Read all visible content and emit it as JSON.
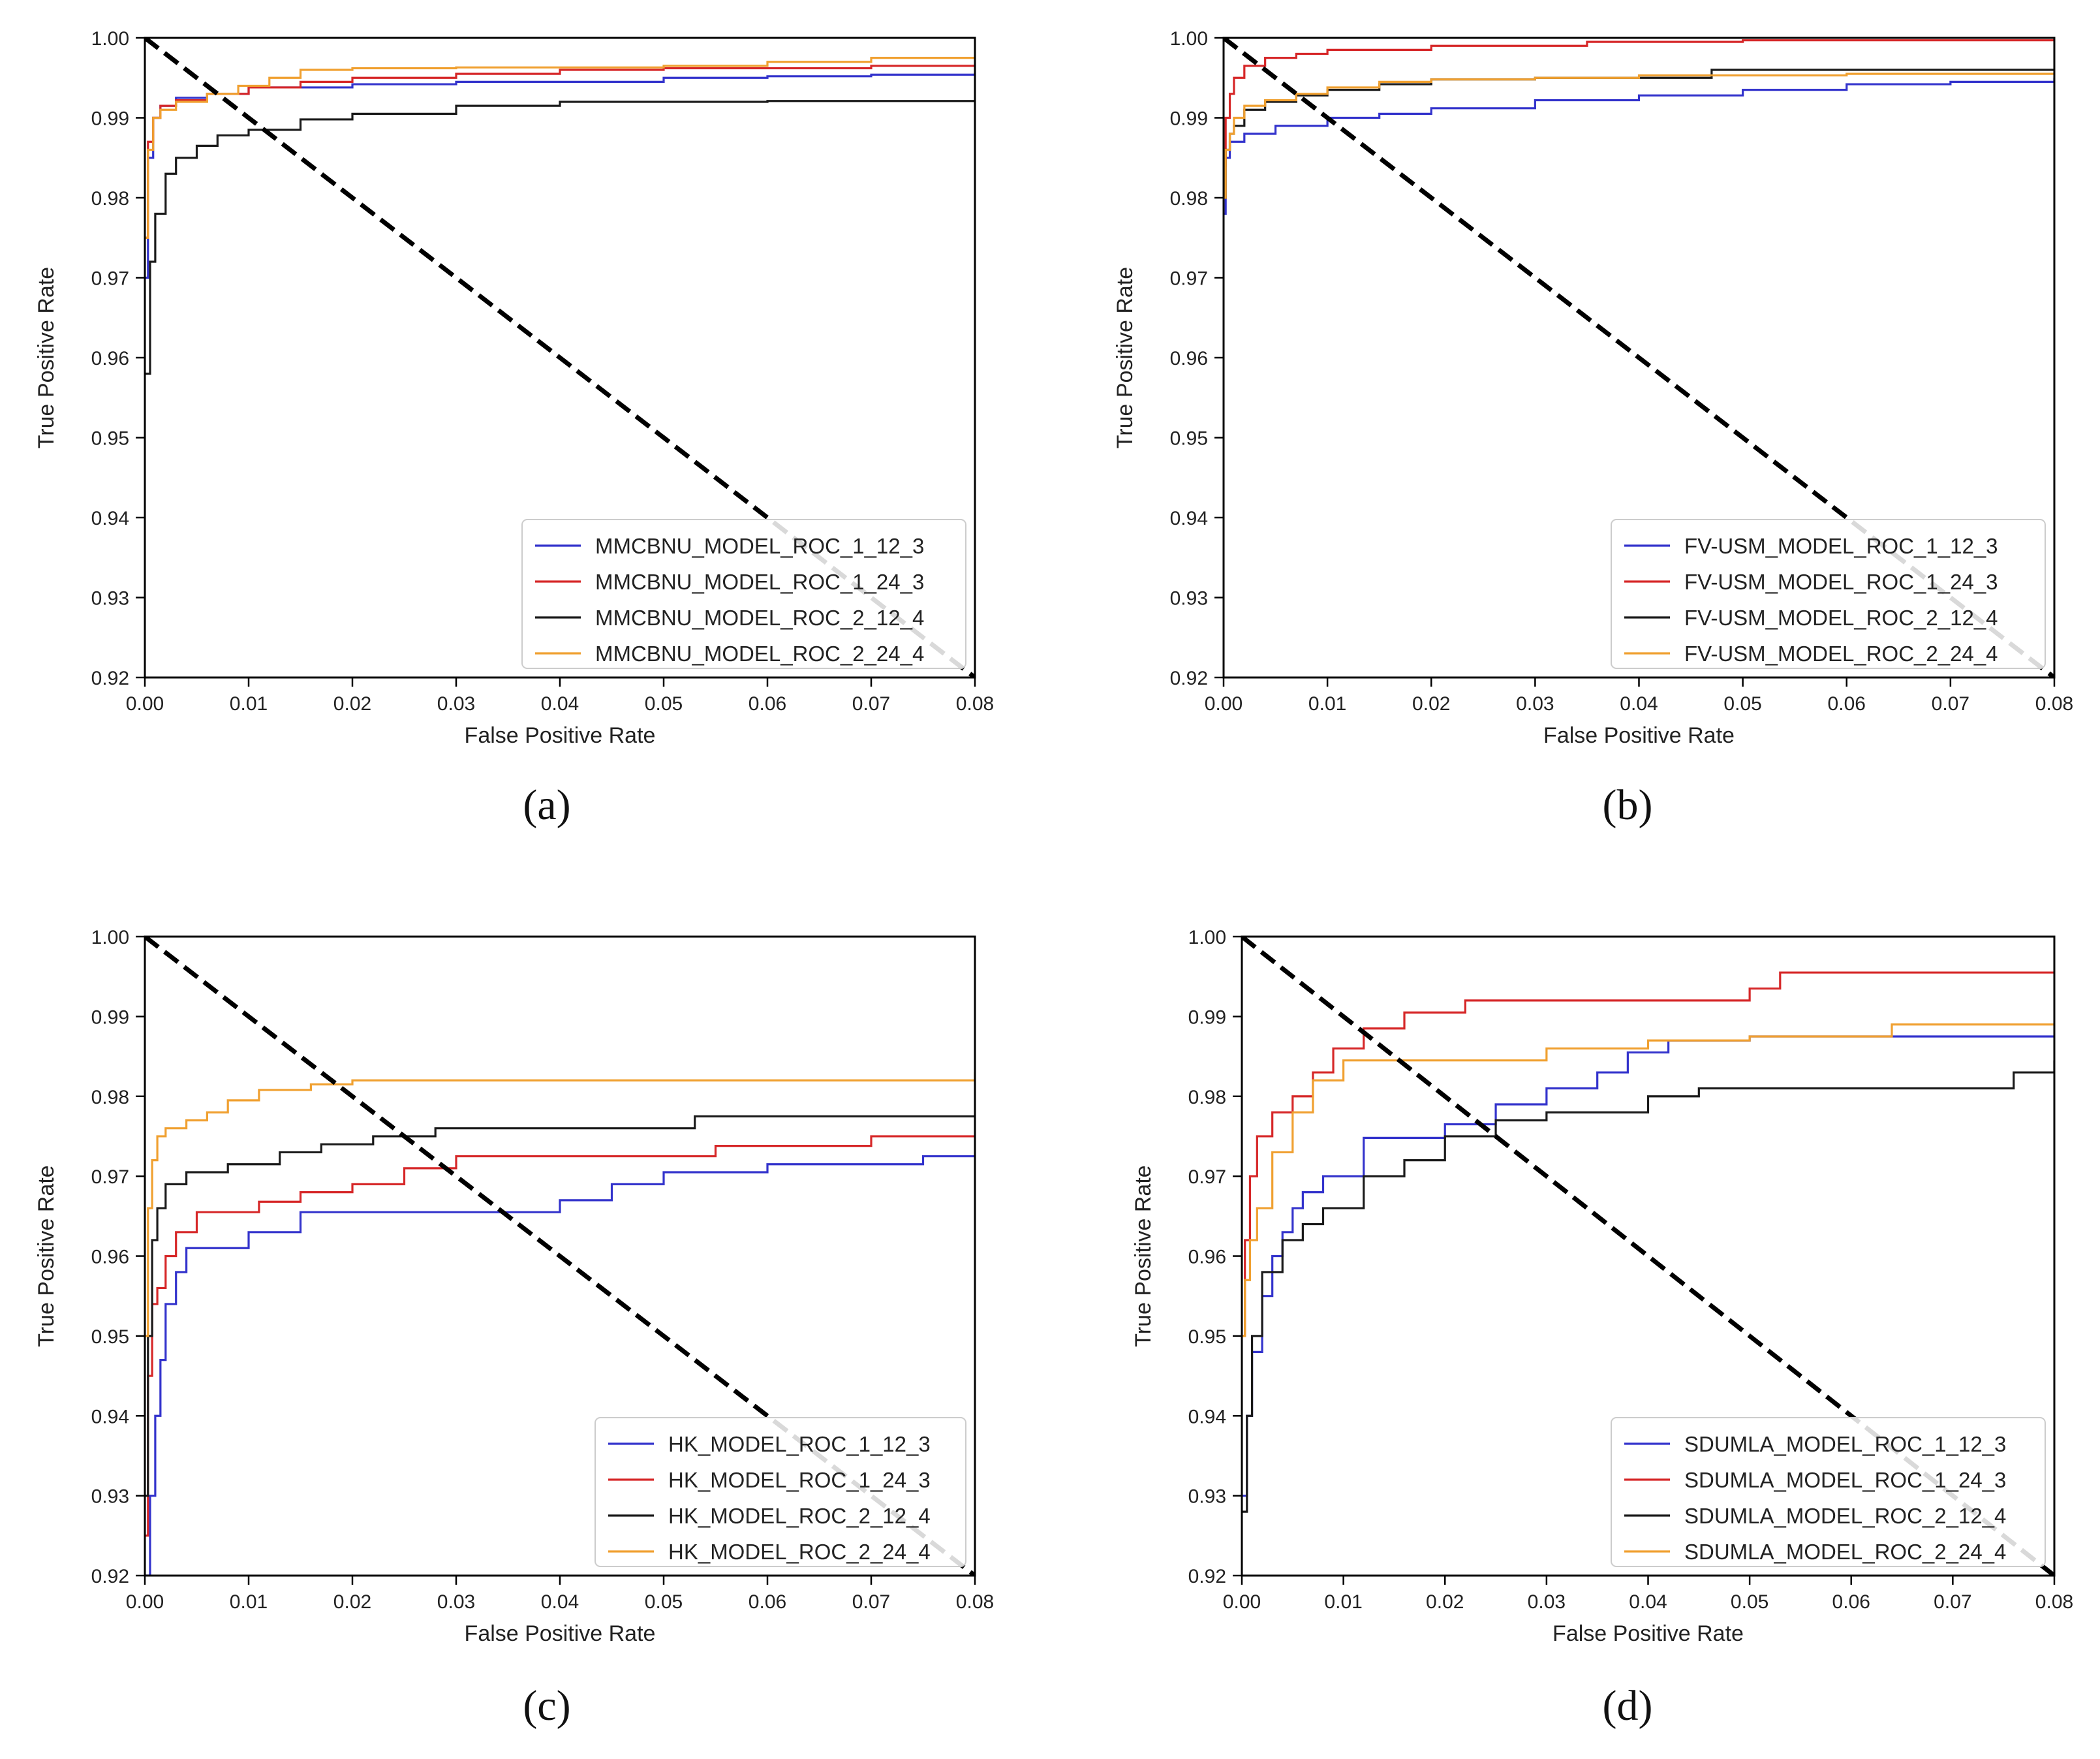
{
  "colors": {
    "series": [
      "#3333cc",
      "#d62728",
      "#1a1a1a",
      "#f0a030"
    ],
    "diagonal": "#000000"
  },
  "chart_data": [
    {
      "panel": "a",
      "caption": "(a)",
      "type": "line",
      "xlabel": "False Positive Rate",
      "ylabel": "True Positive Rate",
      "xlim": [
        0,
        0.08
      ],
      "ylim": [
        0.92,
        1.0
      ],
      "xticks": [
        "0.00",
        "0.01",
        "0.02",
        "0.03",
        "0.04",
        "0.05",
        "0.06",
        "0.07",
        "0.08"
      ],
      "yticks": [
        "0.92",
        "0.93",
        "0.94",
        "0.95",
        "0.96",
        "0.97",
        "0.98",
        "0.99",
        "1.00"
      ],
      "grid": false,
      "legend_position": "lower-right",
      "diagonal": {
        "x": [
          0,
          0.08
        ],
        "y": [
          1.0,
          0.92
        ],
        "style": "dashed"
      },
      "series": [
        {
          "name": "MMCBNU_MODEL_ROC_1_12_3",
          "x": [
            0,
            0.0003,
            0.0008,
            0.0015,
            0.003,
            0.006,
            0.01,
            0.02,
            0.03,
            0.05,
            0.06,
            0.07,
            0.08
          ],
          "y": [
            0.97,
            0.985,
            0.99,
            0.9915,
            0.9925,
            0.993,
            0.9938,
            0.9942,
            0.9945,
            0.995,
            0.9952,
            0.9954,
            0.9956
          ]
        },
        {
          "name": "MMCBNU_MODEL_ROC_1_24_3",
          "x": [
            0,
            0.0003,
            0.0008,
            0.0015,
            0.003,
            0.006,
            0.01,
            0.015,
            0.02,
            0.03,
            0.04,
            0.05,
            0.07,
            0.08
          ],
          "y": [
            0.975,
            0.987,
            0.99,
            0.9915,
            0.9922,
            0.993,
            0.9938,
            0.9945,
            0.995,
            0.9955,
            0.996,
            0.9962,
            0.9965,
            0.9966
          ]
        },
        {
          "name": "MMCBNU_MODEL_ROC_2_12_4",
          "x": [
            0,
            0.0005,
            0.001,
            0.002,
            0.003,
            0.005,
            0.007,
            0.01,
            0.015,
            0.02,
            0.03,
            0.04,
            0.06,
            0.08
          ],
          "y": [
            0.958,
            0.972,
            0.978,
            0.983,
            0.985,
            0.9865,
            0.9878,
            0.9885,
            0.9898,
            0.9905,
            0.9915,
            0.992,
            0.9921,
            0.9921
          ]
        },
        {
          "name": "MMCBNU_MODEL_ROC_2_24_4",
          "x": [
            0,
            0.0003,
            0.0008,
            0.0015,
            0.003,
            0.006,
            0.009,
            0.012,
            0.015,
            0.02,
            0.03,
            0.05,
            0.06,
            0.07,
            0.08
          ],
          "y": [
            0.975,
            0.986,
            0.99,
            0.991,
            0.992,
            0.993,
            0.994,
            0.995,
            0.996,
            0.9962,
            0.9963,
            0.9965,
            0.997,
            0.9975,
            0.9976
          ]
        }
      ]
    },
    {
      "panel": "b",
      "caption": "(b)",
      "type": "line",
      "xlabel": "False Positive Rate",
      "ylabel": "True Positive Rate",
      "xlim": [
        0,
        0.08
      ],
      "ylim": [
        0.92,
        1.0
      ],
      "xticks": [
        "0.00",
        "0.01",
        "0.02",
        "0.03",
        "0.04",
        "0.05",
        "0.06",
        "0.07",
        "0.08"
      ],
      "yticks": [
        "0.92",
        "0.93",
        "0.94",
        "0.95",
        "0.96",
        "0.97",
        "0.98",
        "0.99",
        "1.00"
      ],
      "grid": false,
      "legend_position": "lower-right",
      "diagonal": {
        "x": [
          0,
          0.08
        ],
        "y": [
          1.0,
          0.92
        ],
        "style": "dashed"
      },
      "series": [
        {
          "name": "FV-USM_MODEL_ROC_1_12_3",
          "x": [
            0,
            0.0002,
            0.0006,
            0.002,
            0.005,
            0.01,
            0.015,
            0.02,
            0.03,
            0.04,
            0.05,
            0.06,
            0.07,
            0.08
          ],
          "y": [
            0.978,
            0.985,
            0.987,
            0.988,
            0.989,
            0.99,
            0.9905,
            0.9912,
            0.9922,
            0.9928,
            0.9935,
            0.9942,
            0.9945,
            0.995
          ]
        },
        {
          "name": "FV-USM_MODEL_ROC_1_24_3",
          "x": [
            0,
            0.0002,
            0.0006,
            0.001,
            0.002,
            0.004,
            0.007,
            0.01,
            0.02,
            0.035,
            0.05,
            0.08
          ],
          "y": [
            0.984,
            0.99,
            0.993,
            0.995,
            0.9965,
            0.9975,
            0.998,
            0.9985,
            0.999,
            0.9995,
            0.9997,
            0.9997
          ]
        },
        {
          "name": "FV-USM_MODEL_ROC_2_12_4",
          "x": [
            0,
            0.0002,
            0.0006,
            0.001,
            0.002,
            0.004,
            0.007,
            0.01,
            0.015,
            0.02,
            0.03,
            0.047,
            0.06,
            0.08
          ],
          "y": [
            0.98,
            0.986,
            0.988,
            0.989,
            0.991,
            0.992,
            0.9928,
            0.9935,
            0.9942,
            0.9948,
            0.995,
            0.996,
            0.996,
            0.996
          ]
        },
        {
          "name": "FV-USM_MODEL_ROC_2_24_4",
          "x": [
            0,
            0.0002,
            0.0006,
            0.001,
            0.002,
            0.004,
            0.007,
            0.01,
            0.015,
            0.02,
            0.03,
            0.04,
            0.06,
            0.08
          ],
          "y": [
            0.98,
            0.986,
            0.988,
            0.99,
            0.9915,
            0.9922,
            0.993,
            0.9938,
            0.9945,
            0.9948,
            0.995,
            0.9953,
            0.9955,
            0.9955
          ]
        }
      ]
    },
    {
      "panel": "c",
      "caption": "(c)",
      "type": "line",
      "xlabel": "False Positive Rate",
      "ylabel": "True Positive Rate",
      "xlim": [
        0,
        0.08
      ],
      "ylim": [
        0.92,
        1.0
      ],
      "xticks": [
        "0.00",
        "0.01",
        "0.02",
        "0.03",
        "0.04",
        "0.05",
        "0.06",
        "0.07",
        "0.08"
      ],
      "yticks": [
        "0.92",
        "0.93",
        "0.94",
        "0.95",
        "0.96",
        "0.97",
        "0.98",
        "0.99",
        "1.00"
      ],
      "grid": false,
      "legend_position": "lower-right",
      "diagonal": {
        "x": [
          0,
          0.08
        ],
        "y": [
          1.0,
          0.92
        ],
        "style": "dashed"
      },
      "series": [
        {
          "name": "HK_MODEL_ROC_1_12_3",
          "x": [
            0,
            0.0005,
            0.001,
            0.0015,
            0.002,
            0.003,
            0.004,
            0.007,
            0.01,
            0.015,
            0.035,
            0.04,
            0.045,
            0.05,
            0.06,
            0.07,
            0.075,
            0.08
          ],
          "y": [
            0.92,
            0.93,
            0.94,
            0.947,
            0.954,
            0.958,
            0.961,
            0.961,
            0.963,
            0.9655,
            0.9655,
            0.967,
            0.969,
            0.9705,
            0.9715,
            0.9715,
            0.9725,
            0.9725
          ]
        },
        {
          "name": "HK_MODEL_ROC_1_24_3",
          "x": [
            0,
            0.0003,
            0.0007,
            0.0012,
            0.002,
            0.003,
            0.005,
            0.008,
            0.011,
            0.015,
            0.02,
            0.025,
            0.03,
            0.045,
            0.055,
            0.07,
            0.08
          ],
          "y": [
            0.925,
            0.945,
            0.954,
            0.956,
            0.96,
            0.963,
            0.9655,
            0.9655,
            0.9668,
            0.968,
            0.969,
            0.971,
            0.9725,
            0.9725,
            0.9738,
            0.975,
            0.975
          ]
        },
        {
          "name": "HK_MODEL_ROC_2_12_4",
          "x": [
            0,
            0.0003,
            0.0007,
            0.0012,
            0.002,
            0.004,
            0.008,
            0.013,
            0.017,
            0.022,
            0.028,
            0.04,
            0.053,
            0.065,
            0.08
          ],
          "y": [
            0.93,
            0.95,
            0.962,
            0.966,
            0.969,
            0.9705,
            0.9715,
            0.973,
            0.974,
            0.975,
            0.976,
            0.976,
            0.9775,
            0.9775,
            0.9775
          ]
        },
        {
          "name": "HK_MODEL_ROC_2_24_4",
          "x": [
            0,
            0.0003,
            0.0007,
            0.0012,
            0.002,
            0.004,
            0.006,
            0.008,
            0.011,
            0.016,
            0.02,
            0.04,
            0.06,
            0.079,
            0.08
          ],
          "y": [
            0.95,
            0.966,
            0.972,
            0.975,
            0.976,
            0.977,
            0.978,
            0.9795,
            0.9808,
            0.9815,
            0.982,
            0.982,
            0.982,
            0.982,
            0.983
          ]
        }
      ]
    },
    {
      "panel": "d",
      "caption": "(d)",
      "type": "line",
      "xlabel": "False Positive Rate",
      "ylabel": "True Positive Rate",
      "xlim": [
        0,
        0.08
      ],
      "ylim": [
        0.92,
        1.0
      ],
      "xticks": [
        "0.00",
        "0.01",
        "0.02",
        "0.03",
        "0.04",
        "0.05",
        "0.06",
        "0.07",
        "0.08"
      ],
      "yticks": [
        "0.92",
        "0.93",
        "0.94",
        "0.95",
        "0.96",
        "0.97",
        "0.98",
        "0.99",
        "1.00"
      ],
      "grid": false,
      "legend_position": "lower-right",
      "diagonal": {
        "x": [
          0,
          0.08
        ],
        "y": [
          1.0,
          0.92
        ],
        "style": "dashed"
      },
      "series": [
        {
          "name": "SDUMLA_MODEL_ROC_1_12_3",
          "x": [
            0,
            0.0005,
            0.001,
            0.002,
            0.003,
            0.004,
            0.005,
            0.006,
            0.008,
            0.01,
            0.012,
            0.015,
            0.02,
            0.025,
            0.03,
            0.035,
            0.038,
            0.042,
            0.05,
            0.06,
            0.08
          ],
          "y": [
            0.93,
            0.94,
            0.948,
            0.955,
            0.96,
            0.963,
            0.966,
            0.968,
            0.97,
            0.97,
            0.9748,
            0.9748,
            0.9765,
            0.979,
            0.981,
            0.983,
            0.9855,
            0.987,
            0.9875,
            0.9875,
            0.9875
          ]
        },
        {
          "name": "SDUMLA_MODEL_ROC_1_24_3",
          "x": [
            0,
            0.0003,
            0.0008,
            0.0015,
            0.003,
            0.005,
            0.007,
            0.009,
            0.012,
            0.016,
            0.022,
            0.03,
            0.05,
            0.053,
            0.065,
            0.08
          ],
          "y": [
            0.95,
            0.962,
            0.97,
            0.975,
            0.978,
            0.98,
            0.983,
            0.986,
            0.9885,
            0.9905,
            0.992,
            0.992,
            0.9935,
            0.9955,
            0.9955,
            0.9955
          ]
        },
        {
          "name": "SDUMLA_MODEL_ROC_2_12_4",
          "x": [
            0,
            0.0005,
            0.001,
            0.002,
            0.004,
            0.006,
            0.008,
            0.012,
            0.016,
            0.02,
            0.025,
            0.03,
            0.04,
            0.045,
            0.06,
            0.076,
            0.08
          ],
          "y": [
            0.928,
            0.94,
            0.95,
            0.958,
            0.962,
            0.964,
            0.966,
            0.97,
            0.972,
            0.975,
            0.977,
            0.978,
            0.98,
            0.981,
            0.981,
            0.983,
            0.9845
          ]
        },
        {
          "name": "SDUMLA_MODEL_ROC_2_24_4",
          "x": [
            0,
            0.0003,
            0.0008,
            0.0015,
            0.003,
            0.005,
            0.007,
            0.01,
            0.02,
            0.03,
            0.04,
            0.05,
            0.064,
            0.08
          ],
          "y": [
            0.95,
            0.957,
            0.962,
            0.966,
            0.973,
            0.978,
            0.982,
            0.9845,
            0.9845,
            0.986,
            0.987,
            0.9875,
            0.989,
            0.989
          ]
        }
      ]
    }
  ]
}
